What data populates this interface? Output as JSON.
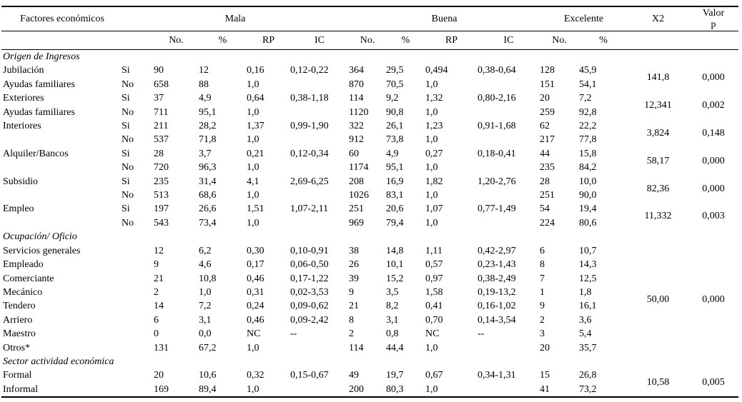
{
  "header": {
    "factores": "Factores económicos",
    "mala": "Mala",
    "buena": "Buena",
    "excelente": "Excelente",
    "x2": "X2",
    "valor_p": "Valor\np",
    "sub": [
      "No.",
      "%",
      "RP",
      "IC",
      "No.",
      "%",
      "RP",
      "IC",
      "No.",
      "%"
    ]
  },
  "rows": [
    {
      "section": "Origen de Ingresos"
    },
    {
      "cells": [
        "Jubilación",
        "Si",
        "90",
        "12",
        "0,16",
        "0,12-0,22",
        "364",
        "29,5",
        "0,494",
        "0,38-0,64",
        "128",
        "45,9"
      ],
      "stat": {
        "x2": "141,8",
        "p": "0,000",
        "span": 2
      }
    },
    {
      "cells": [
        "Ayudas familiares",
        "No",
        "658",
        "88",
        "1,0",
        "",
        "870",
        "70,5",
        "1,0",
        "",
        "151",
        "54,1"
      ]
    },
    {
      "cells": [
        "Exteriores",
        "Si",
        "37",
        "4,9",
        "0,64",
        "0,38-1,18",
        "114",
        "9,2",
        "1,32",
        "0,80-2,16",
        "20",
        "7,2"
      ],
      "stat": {
        "x2": "12,341",
        "p": "0,002",
        "span": 2
      }
    },
    {
      "cells": [
        "Ayudas familiares",
        "No",
        "711",
        "95,1",
        "1,0",
        "",
        "1120",
        "90,8",
        "1,0",
        "",
        "259",
        "92,8"
      ]
    },
    {
      "cells": [
        "Interiores",
        "Si",
        "211",
        "28,2",
        "1,37",
        "0,99-1,90",
        "322",
        "26,1",
        "1,23",
        "0,91-1,68",
        "62",
        "22,2"
      ],
      "stat": {
        "x2": "3,824",
        "p": "0,148",
        "span": 2
      }
    },
    {
      "cells": [
        "",
        "No",
        "537",
        "71,8",
        "1,0",
        "",
        "912",
        "73,8",
        "1,0",
        "",
        "217",
        "77,8"
      ]
    },
    {
      "cells": [
        "Alquiler/Bancos",
        "Si",
        "28",
        "3,7",
        "0,21",
        "0,12-0,34",
        "60",
        "4,9",
        "0,27",
        "0,18-0,41",
        "44",
        "15,8"
      ],
      "stat": {
        "x2": "58,17",
        "p": "0,000",
        "span": 2
      }
    },
    {
      "cells": [
        "",
        "No",
        "720",
        "96,3",
        "1,0",
        "",
        "1174",
        "95,1",
        "1,0",
        "",
        "235",
        "84,2"
      ]
    },
    {
      "cells": [
        "Subsidio",
        "Si",
        "235",
        "31,4",
        "4,1",
        "2,69-6,25",
        "208",
        "16,9",
        "1,82",
        "1,20-2,76",
        "28",
        "10,0"
      ],
      "stat": {
        "x2": "82,36",
        "p": "0,000",
        "span": 2
      }
    },
    {
      "cells": [
        "",
        "No",
        "513",
        "68,6",
        "1,0",
        "",
        "1026",
        "83,1",
        "1,0",
        "",
        "251",
        "90,0"
      ]
    },
    {
      "cells": [
        "Empleo",
        "Si",
        "197",
        "26,6",
        "1,51",
        "1,07-2,11",
        "251",
        "20,6",
        "1,07",
        "0,77-1,49",
        "54",
        "19,4"
      ],
      "stat": {
        "x2": "11,332",
        "p": "0,003",
        "span": 2
      }
    },
    {
      "cells": [
        "",
        "No",
        "543",
        "73,4",
        "1,0",
        "",
        "969",
        "79,4",
        "1,0",
        "",
        "224",
        "80,6"
      ]
    },
    {
      "section": "Ocupación/ Oficio"
    },
    {
      "cells": [
        "Servicios generales",
        "",
        "12",
        "6,2",
        "0,30",
        "0,10-0,91",
        "38",
        "14,8",
        "1,11",
        "0,42-2,97",
        "6",
        "10,7"
      ],
      "stat": {
        "x2": "50,00",
        "p": "0,000",
        "span": 8
      }
    },
    {
      "cells": [
        "Empleado",
        "",
        "9",
        "4,6",
        "0,17",
        "0,06-0,50",
        "26",
        "10,1",
        "0,57",
        "0,23-1,43",
        "8",
        "14,3"
      ]
    },
    {
      "cells": [
        "Comerciante",
        "",
        "21",
        "10,8",
        "0,46",
        "0,17-1,22",
        "39",
        "15,2",
        "0,97",
        "0,38-2,49",
        "7",
        "12,5"
      ]
    },
    {
      "cells": [
        "Mecánico",
        "",
        "2",
        "1,0",
        "0,31",
        "0,02-3,53",
        "9",
        "3,5",
        "1,58",
        "0,19-13,2",
        "1",
        "1,8"
      ]
    },
    {
      "cells": [
        "Tendero",
        "",
        "14",
        "7,2",
        "0,24",
        "0,09-0,62",
        "21",
        "8,2",
        "0,41",
        "0,16-1,02",
        "9",
        "16,1"
      ]
    },
    {
      "cells": [
        "Arriero",
        "",
        "6",
        "3,1",
        "0,46",
        "0,09-2,42",
        "8",
        "3,1",
        "0,70",
        "0,14-3,54",
        "2",
        "3,6"
      ]
    },
    {
      "cells": [
        "Maestro",
        "",
        "0",
        "0,0",
        "NC",
        "--",
        "2",
        "0,8",
        "NC",
        "--",
        "3",
        "5,4"
      ]
    },
    {
      "cells": [
        "Otros*",
        "",
        "131",
        "67,2",
        "1,0",
        "",
        "114",
        "44,4",
        "1,0",
        "",
        "20",
        "35,7"
      ]
    },
    {
      "section": "Sector actividad económica"
    },
    {
      "cells": [
        "Formal",
        "",
        "20",
        "10,6",
        "0,32",
        "0,15-0,67",
        "49",
        "19,7",
        "0,67",
        "0,34-1,31",
        "15",
        "26,8"
      ],
      "stat": {
        "x2": "10,58",
        "p": "0,005",
        "span": 2
      }
    },
    {
      "cells": [
        "Informal",
        "",
        "169",
        "89,4",
        "1,0",
        "",
        "200",
        "80,3",
        "1,0",
        "",
        "41",
        "73,2"
      ]
    }
  ]
}
